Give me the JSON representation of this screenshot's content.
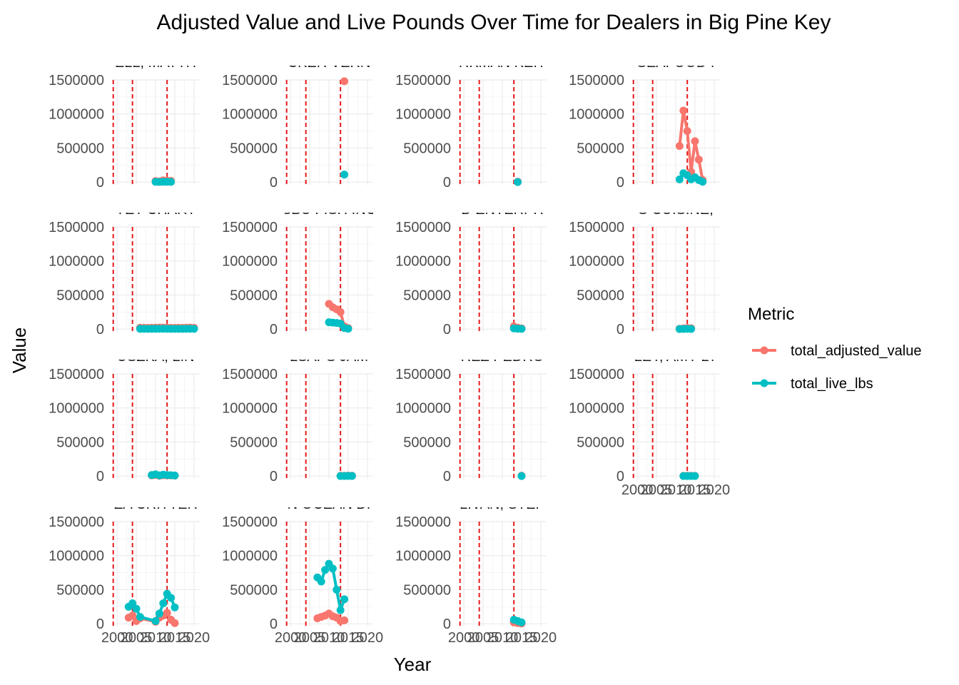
{
  "chart_data": {
    "type": "line",
    "title": "Adjusted Value and Live Pounds Over Time for Dealers in Big Pine Key",
    "xlabel": "Year",
    "ylabel": "Value",
    "xlim": [
      1998.5,
      2021.5
    ],
    "ylim": [
      -40000,
      1500000
    ],
    "x_ticks": [
      2000,
      2005,
      2010,
      2015,
      2020
    ],
    "x_tick_labels": [
      "2000",
      "2005",
      "2010",
      "2015",
      "2020"
    ],
    "y_ticks": [
      0,
      500000,
      1000000,
      1500000
    ],
    "y_tick_labels": [
      "0",
      "500000",
      "1000000",
      "1500000"
    ],
    "reference_lines_x": [
      1999,
      2004,
      2013
    ],
    "reference_line_color": "#e41a1c",
    "grid": true,
    "legend": {
      "title": "Metric",
      "position": "right",
      "entries": [
        {
          "name": "total_adjusted_value",
          "color": "#F8766D"
        },
        {
          "name": "total_live_lbs",
          "color": "#00BFC4"
        }
      ]
    },
    "panels": [
      {
        "label": "ELL, MATTH",
        "show_x_axis": false,
        "series": [
          {
            "name": "total_adjusted_value",
            "x": [
              2010,
              2011,
              2012,
              2013,
              2014
            ],
            "y": [
              15000,
              8000,
              25000,
              20000,
              18000
            ]
          },
          {
            "name": "total_live_lbs",
            "x": [
              2010,
              2011,
              2012,
              2013,
              2014
            ],
            "y": [
              3000,
              2000,
              5000,
              4000,
              3500
            ]
          }
        ]
      },
      {
        "label": "CKER VERN",
        "show_x_axis": false,
        "series": [
          {
            "name": "total_adjusted_value",
            "x": [
              2014
            ],
            "y": [
              1480000
            ]
          },
          {
            "name": "total_live_lbs",
            "x": [
              2014
            ],
            "y": [
              110000
            ]
          }
        ]
      },
      {
        "label": "RKMAN KEIT",
        "show_x_axis": false,
        "series": [
          {
            "name": "total_adjusted_value",
            "x": [
              2014
            ],
            "y": [
              6000
            ]
          },
          {
            "name": "total_live_lbs",
            "x": [
              2014
            ],
            "y": [
              1000
            ]
          }
        ]
      },
      {
        "label": "SEAFOOD I",
        "show_x_axis": false,
        "series": [
          {
            "name": "total_adjusted_value",
            "x": [
              2011,
              2012,
              2013,
              2014,
              2015,
              2016,
              2017
            ],
            "y": [
              530000,
              1050000,
              750000,
              150000,
              600000,
              330000,
              30000
            ]
          },
          {
            "name": "total_live_lbs",
            "x": [
              2011,
              2012,
              2013,
              2014,
              2015,
              2016,
              2017
            ],
            "y": [
              40000,
              130000,
              100000,
              40000,
              70000,
              30000,
              5000
            ]
          }
        ]
      },
      {
        "label": "YET CHART",
        "show_x_axis": false,
        "series": [
          {
            "name": "total_adjusted_value",
            "x": [
              2006,
              2007,
              2008,
              2009,
              2010,
              2011,
              2012,
              2013,
              2014,
              2015,
              2016,
              2017,
              2018,
              2019,
              2020
            ],
            "y": [
              20000,
              18000,
              17000,
              19000,
              20000,
              21000,
              22000,
              20000,
              18000,
              17000,
              19000,
              18000,
              20000,
              21000,
              19000
            ]
          },
          {
            "name": "total_live_lbs",
            "x": [
              2006,
              2007,
              2008,
              2009,
              2010,
              2011,
              2012,
              2013,
              2014,
              2015,
              2016,
              2017,
              2018,
              2019,
              2020
            ],
            "y": [
              4000,
              3500,
              3000,
              3800,
              4000,
              4200,
              4400,
              4000,
              3600,
              3400,
              3800,
              3600,
              4000,
              4200,
              3800
            ]
          }
        ]
      },
      {
        "label": "SBU FISH INC",
        "show_x_axis": false,
        "series": [
          {
            "name": "total_adjusted_value",
            "x": [
              2010,
              2011,
              2012,
              2013,
              2014,
              2015
            ],
            "y": [
              370000,
              320000,
              290000,
              250000,
              40000,
              15000
            ]
          },
          {
            "name": "total_live_lbs",
            "x": [
              2010,
              2011,
              2012,
              2013,
              2014,
              2015
            ],
            "y": [
              100000,
              95000,
              90000,
              80000,
              15000,
              5000
            ]
          }
        ]
      },
      {
        "label": "D ENTERPR",
        "show_x_axis": false,
        "series": [
          {
            "name": "total_adjusted_value",
            "x": [
              2013,
              2014,
              2015
            ],
            "y": [
              40000,
              20000,
              10000
            ]
          },
          {
            "name": "total_live_lbs",
            "x": [
              2013,
              2014,
              2015
            ],
            "y": [
              10000,
              5000,
              3000
            ]
          }
        ]
      },
      {
        "label": "S CUISINE,",
        "show_x_axis": false,
        "series": [
          {
            "name": "total_adjusted_value",
            "x": [
              2011,
              2012,
              2013,
              2014
            ],
            "y": [
              5000,
              10000,
              15000,
              12000
            ]
          },
          {
            "name": "total_live_lbs",
            "x": [
              2011,
              2012,
              2013,
              2014
            ],
            "y": [
              1000,
              2000,
              3000,
              2500
            ]
          }
        ]
      },
      {
        "label": "USZKA, LIN",
        "show_x_axis": false,
        "series": [
          {
            "name": "total_adjusted_value",
            "x": [
              2009,
              2010,
              2011,
              2012,
              2013,
              2014,
              2015
            ],
            "y": [
              10000,
              15000,
              5000,
              12000,
              8000,
              10000,
              6000
            ]
          },
          {
            "name": "total_live_lbs",
            "x": [
              2009,
              2010,
              2011,
              2012,
              2013,
              2014,
              2015
            ],
            "y": [
              15000,
              25000,
              10000,
              20000,
              15000,
              12000,
              8000
            ]
          }
        ]
      },
      {
        "label": "LSAPS JAM",
        "show_x_axis": false,
        "series": [
          {
            "name": "total_adjusted_value",
            "x": [
              2013,
              2014,
              2015,
              2016
            ],
            "y": [
              4000,
              5000,
              6000,
              5000
            ]
          },
          {
            "name": "total_live_lbs",
            "x": [
              2013,
              2014,
              2015,
              2016
            ],
            "y": [
              1000,
              1200,
              1500,
              1300
            ]
          }
        ]
      },
      {
        "label": "REZ PEDRO",
        "show_x_axis": false,
        "series": [
          {
            "name": "total_adjusted_value",
            "x": [
              2015
            ],
            "y": [
              6000
            ]
          },
          {
            "name": "total_live_lbs",
            "x": [
              2015
            ],
            "y": [
              1000
            ]
          }
        ]
      },
      {
        "label": "LEY, AMY LY",
        "show_x_axis": true,
        "series": [
          {
            "name": "total_adjusted_value",
            "x": [
              2012,
              2013,
              2014,
              2015
            ],
            "y": [
              3000,
              5000,
              4000,
              3000
            ]
          },
          {
            "name": "total_live_lbs",
            "x": [
              2012,
              2013,
              2014,
              2015
            ],
            "y": [
              800,
              1200,
              1000,
              800
            ]
          }
        ]
      },
      {
        "label": "EA CRITTER",
        "show_x_axis": true,
        "series": [
          {
            "name": "total_adjusted_value",
            "x": [
              2003,
              2004,
              2005,
              2006,
              2010,
              2011,
              2012,
              2013,
              2014,
              2015
            ],
            "y": [
              90000,
              120000,
              40000,
              80000,
              30000,
              90000,
              120000,
              160000,
              60000,
              10000
            ]
          },
          {
            "name": "total_live_lbs",
            "x": [
              2003,
              2004,
              2005,
              2006,
              2010,
              2011,
              2012,
              2013,
              2014,
              2015
            ],
            "y": [
              250000,
              300000,
              220000,
              100000,
              40000,
              150000,
              300000,
              440000,
              380000,
              240000
            ]
          }
        ]
      },
      {
        "label": "N OCEAN DI",
        "show_x_axis": true,
        "series": [
          {
            "name": "total_adjusted_value",
            "x": [
              2007,
              2008,
              2009,
              2010,
              2011,
              2012,
              2013,
              2014
            ],
            "y": [
              80000,
              100000,
              120000,
              150000,
              110000,
              90000,
              40000,
              50000
            ]
          },
          {
            "name": "total_live_lbs",
            "x": [
              2007,
              2008,
              2009,
              2010,
              2011,
              2012,
              2013,
              2014
            ],
            "y": [
              680000,
              620000,
              790000,
              880000,
              810000,
              500000,
              200000,
              360000
            ]
          }
        ]
      },
      {
        "label": "LIVAN, STEP",
        "show_x_axis": true,
        "series": [
          {
            "name": "total_adjusted_value",
            "x": [
              2013,
              2014,
              2015
            ],
            "y": [
              20000,
              10000,
              5000
            ]
          },
          {
            "name": "total_live_lbs",
            "x": [
              2013,
              2014,
              2015
            ],
            "y": [
              60000,
              40000,
              20000
            ]
          }
        ]
      }
    ]
  }
}
